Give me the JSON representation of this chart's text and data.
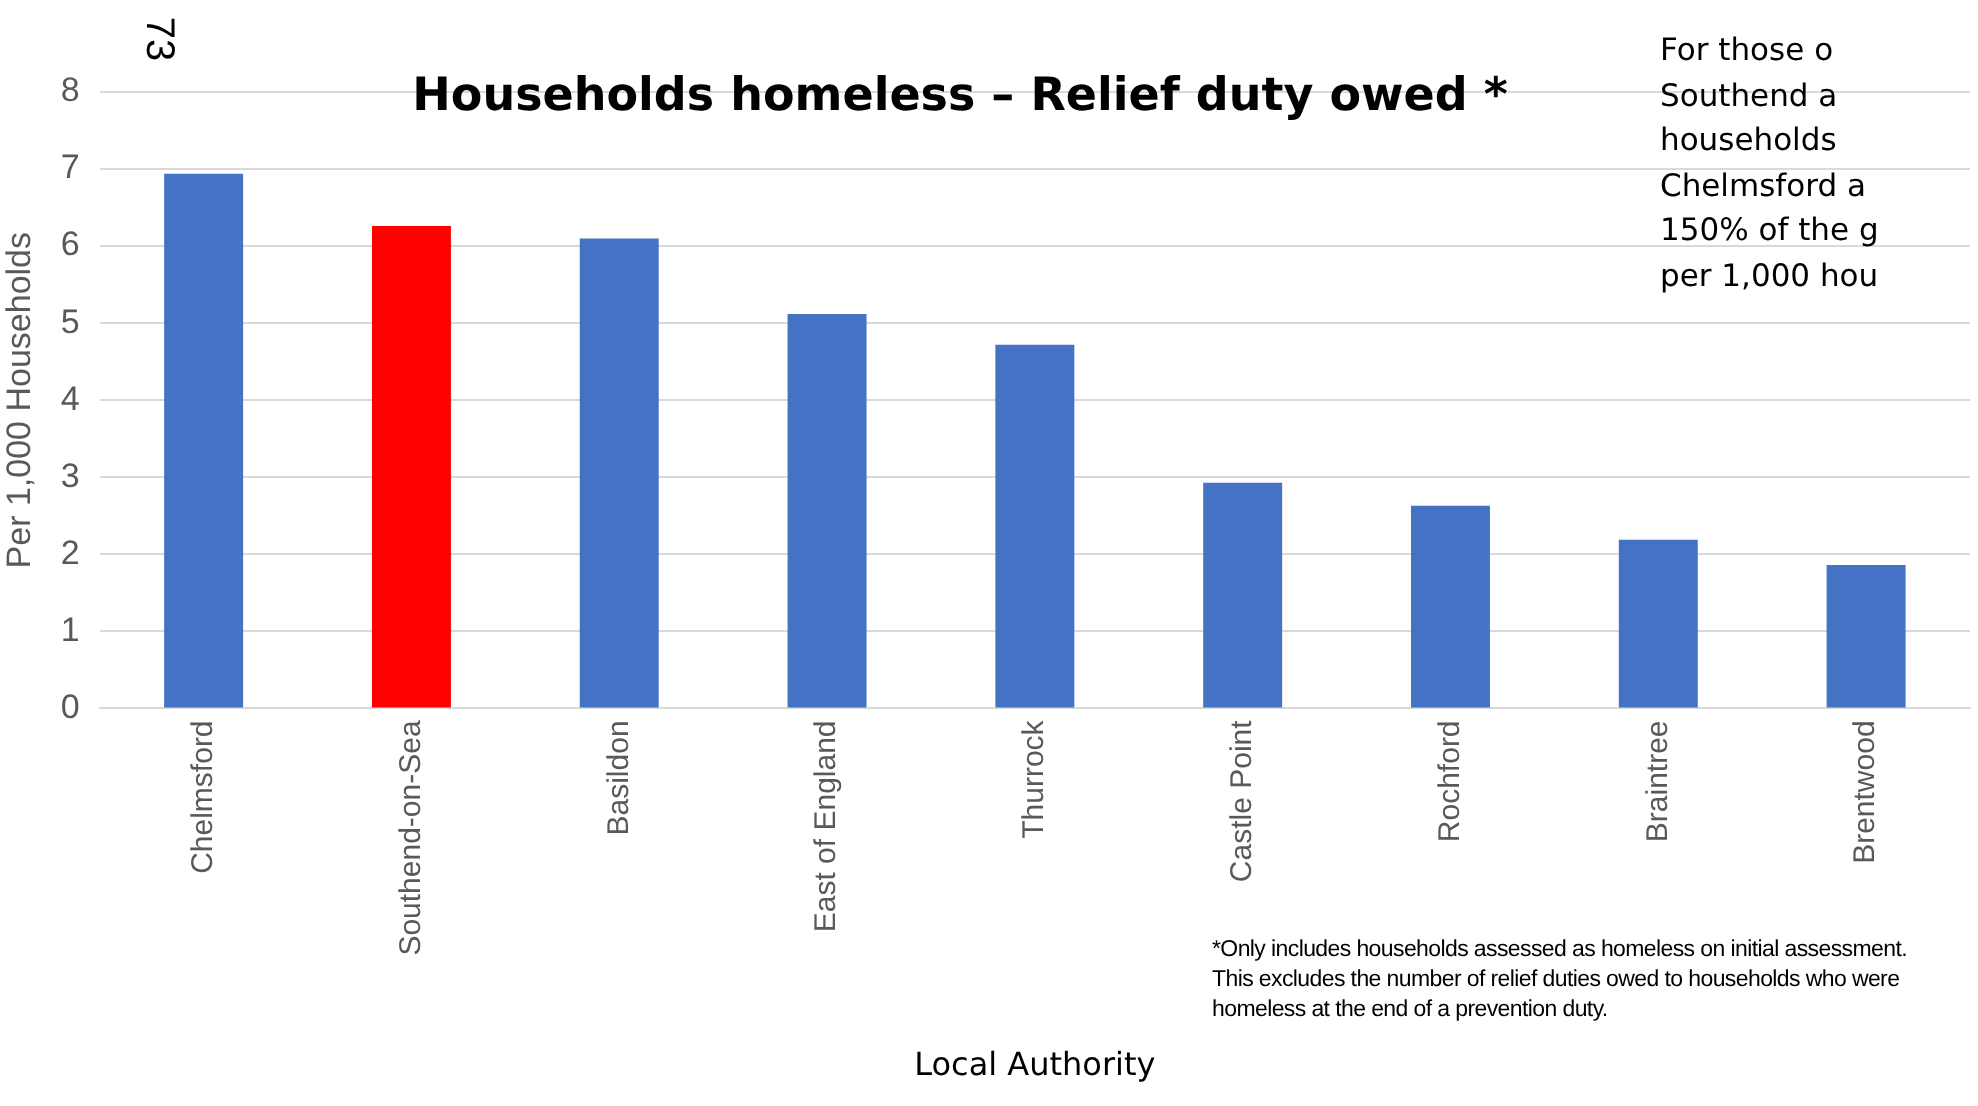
{
  "chart_data": {
    "type": "bar",
    "title": "Households homeless – Relief duty owed *",
    "xlabel": "Local Authority",
    "ylabel": "Per 1,000 Households",
    "categories": [
      "Chelmsford",
      "Southend-on-Sea",
      "Basildon",
      "East of England",
      "Thurrock",
      "Castle Point",
      "Rochford",
      "Braintree",
      "Brentwood"
    ],
    "values": [
      6.94,
      6.26,
      6.1,
      5.12,
      4.72,
      2.93,
      2.63,
      2.19,
      1.86
    ],
    "colors": [
      "#4472c4",
      "#ff0000",
      "#4472c4",
      "#4472c4",
      "#4472c4",
      "#4472c4",
      "#4472c4",
      "#4472c4",
      "#4472c4"
    ],
    "ylim": [
      0,
      8
    ],
    "yticks": [
      0,
      1,
      2,
      3,
      4,
      5,
      6,
      7,
      8
    ],
    "grid": "y",
    "legend": false,
    "annotations": [
      "73",
      "For those o\nSouthend a\nhouseholds\nChelmsford a\n150% of the g\nper 1,000 hou",
      "*Only includes households assessed as homeless on initial assessment. This excludes the number of relief duties owed to households who were homeless at the end of a prevention duty."
    ]
  }
}
